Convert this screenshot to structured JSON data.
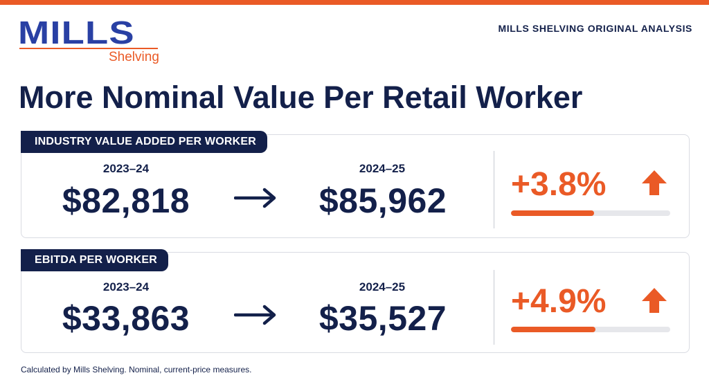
{
  "brand": {
    "logo_word": "MILLS",
    "logo_sub": "Shelving",
    "tag": "MILLS SHELVING ORIGINAL ANALYSIS"
  },
  "headline": "More Nominal Value Per Retail Worker",
  "metrics": [
    {
      "label": "INDUSTRY VALUE ADDED PER WORKER",
      "from_period": "2023–24",
      "from_value": "$82,818",
      "to_period": "2024–25",
      "to_value": "$85,962",
      "change": "+3.8%",
      "bar_fraction": 0.52
    },
    {
      "label": "EBITDA PER WORKER",
      "from_period": "2023–24",
      "from_value": "$33,863",
      "to_period": "2024–25",
      "to_value": "$35,527",
      "change": "+4.9%",
      "bar_fraction": 0.53
    }
  ],
  "footnote": "Calculated by Mills Shelving. Nominal, current-price measures.",
  "colors": {
    "navy": "#13204a",
    "accent_orange": "#ea5a26",
    "logo_blue": "#2940a4"
  },
  "icons": [
    "arrow-right-icon",
    "arrow-up-icon"
  ]
}
